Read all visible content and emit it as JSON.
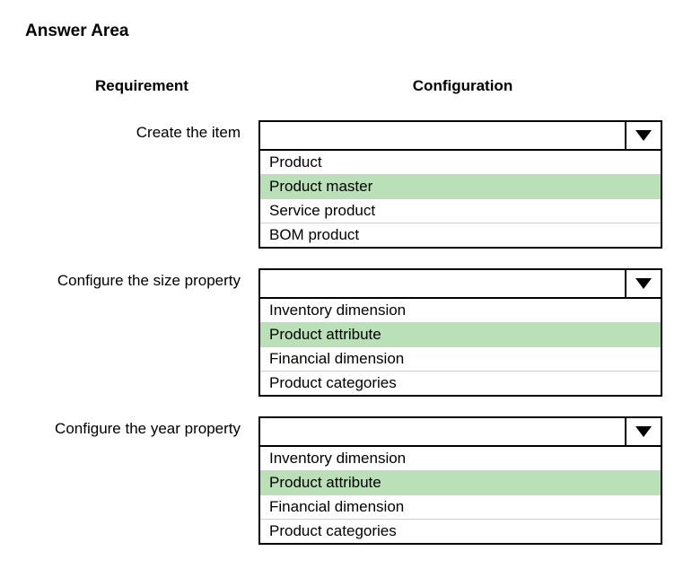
{
  "title": "Answer Area",
  "headers": {
    "left": "Requirement",
    "right": "Configuration"
  },
  "highlight_color": "#b9e0b7",
  "border_color": "#000000",
  "option_divider_color": "#d0d0d0",
  "background_color": "#ffffff",
  "arrow_color": "#000000",
  "rows": [
    {
      "label": "Create the item",
      "selected": "",
      "options": [
        "Product",
        "Product master",
        "Service product",
        "BOM product"
      ],
      "highlighted_index": 1
    },
    {
      "label": "Configure the size property",
      "selected": "",
      "options": [
        "Inventory dimension",
        "Product attribute",
        "Financial dimension",
        "Product categories"
      ],
      "highlighted_index": 1
    },
    {
      "label": "Configure the year property",
      "selected": "",
      "options": [
        "Inventory dimension",
        "Product attribute",
        "Financial dimension",
        "Product categories"
      ],
      "highlighted_index": 1
    }
  ]
}
